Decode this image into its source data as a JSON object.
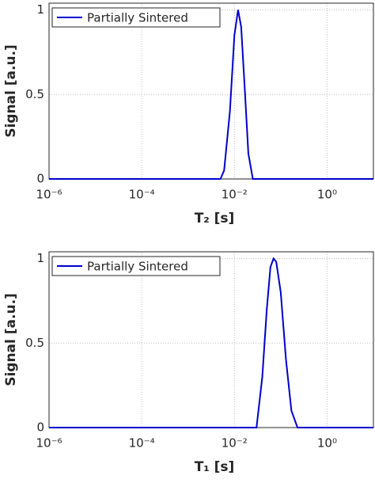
{
  "chart_data": [
    {
      "type": "line",
      "xscale": "log",
      "grid": true,
      "legend": "upper left",
      "ylabel": "Signal [a.u.]",
      "xlabel": "T₂ [s]",
      "xlim": [
        1e-06,
        10
      ],
      "ylim": [
        0,
        1.04
      ],
      "xticks": [
        {
          "value": 1e-06,
          "label": "10⁻⁶"
        },
        {
          "value": 0.0001,
          "label": "10⁻⁴"
        },
        {
          "value": 0.01,
          "label": "10⁻²"
        },
        {
          "value": 1,
          "label": "10⁰"
        }
      ],
      "yticks": [
        0,
        0.5,
        1
      ],
      "x": [
        1e-06,
        0.005,
        0.006,
        0.008,
        0.01,
        0.012,
        0.014,
        0.017,
        0.02,
        0.025,
        10
      ],
      "series": [
        {
          "name": "Partially Sintered",
          "color": "#0000cc",
          "values": [
            0,
            0,
            0.05,
            0.4,
            0.85,
            1,
            0.9,
            0.5,
            0.15,
            0,
            0
          ]
        }
      ]
    },
    {
      "type": "line",
      "xscale": "log",
      "grid": true,
      "legend": "upper left",
      "ylabel": "Signal [a.u.]",
      "xlabel": "T₁ [s]",
      "xlim": [
        1e-06,
        10
      ],
      "ylim": [
        0,
        1.04
      ],
      "xticks": [
        {
          "value": 1e-06,
          "label": "10⁻⁶"
        },
        {
          "value": 0.0001,
          "label": "10⁻⁴"
        },
        {
          "value": 0.01,
          "label": "10⁻²"
        },
        {
          "value": 1,
          "label": "10⁰"
        }
      ],
      "yticks": [
        0,
        0.5,
        1
      ],
      "x": [
        1e-06,
        0.03,
        0.04,
        0.05,
        0.06,
        0.07,
        0.08,
        0.1,
        0.13,
        0.17,
        0.23,
        10
      ],
      "series": [
        {
          "name": "Partially Sintered",
          "color": "#0000cc",
          "values": [
            0,
            0,
            0.3,
            0.7,
            0.95,
            1,
            0.98,
            0.8,
            0.4,
            0.1,
            0,
            0
          ]
        }
      ]
    }
  ]
}
